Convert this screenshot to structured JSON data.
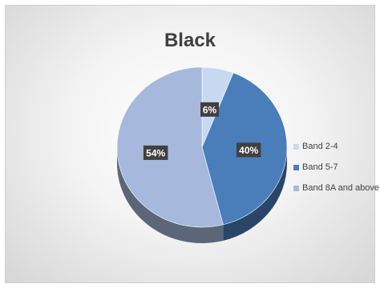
{
  "chart_data": {
    "type": "pie",
    "title": "Black",
    "categories": [
      "Band 2-4",
      "Band 5-7",
      "Band 8A and above"
    ],
    "values": [
      6,
      40,
      54
    ],
    "data_labels": [
      "6%",
      "40%",
      "54%"
    ],
    "colors": [
      "#c6d9f1",
      "#4a7ebb",
      "#a6b9dc"
    ],
    "legend_position": "right",
    "style": "3d"
  }
}
